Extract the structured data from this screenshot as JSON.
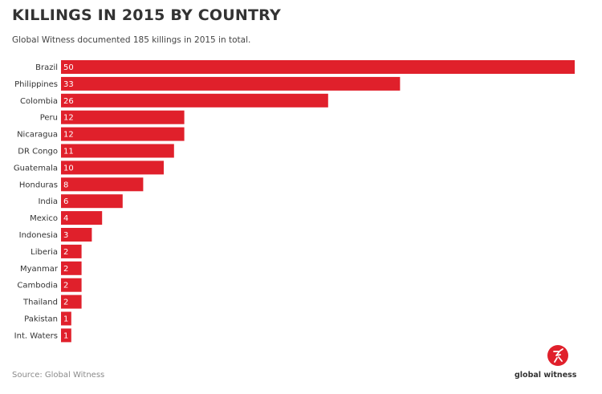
{
  "header": {
    "title": "KILLINGS IN 2015 BY COUNTRY",
    "subtitle": "Global Witness documented 185 killings in 2015 in total."
  },
  "footer": {
    "source": "Source: Global Witness",
    "logo_text": "global witness"
  },
  "colors": {
    "bar": "#e0202b",
    "logo": "#e0202b"
  },
  "chart_data": {
    "type": "bar",
    "orientation": "horizontal",
    "categories": [
      "Brazil",
      "Philippines",
      "Colombia",
      "Peru",
      "Nicaragua",
      "DR Congo",
      "Guatemala",
      "Honduras",
      "India",
      "Mexico",
      "Indonesia",
      "Liberia",
      "Myanmar",
      "Cambodia",
      "Thailand",
      "Pakistan",
      "Int. Waters"
    ],
    "values": [
      50,
      33,
      26,
      12,
      12,
      11,
      10,
      8,
      6,
      4,
      3,
      2,
      2,
      2,
      2,
      1,
      1
    ],
    "title": "KILLINGS IN 2015 BY COUNTRY",
    "subtitle": "Global Witness documented 185 killings in 2015 in total.",
    "xlim": [
      0,
      50
    ],
    "grid": false,
    "legend": "none",
    "data_labels": "inside-bar-start"
  }
}
